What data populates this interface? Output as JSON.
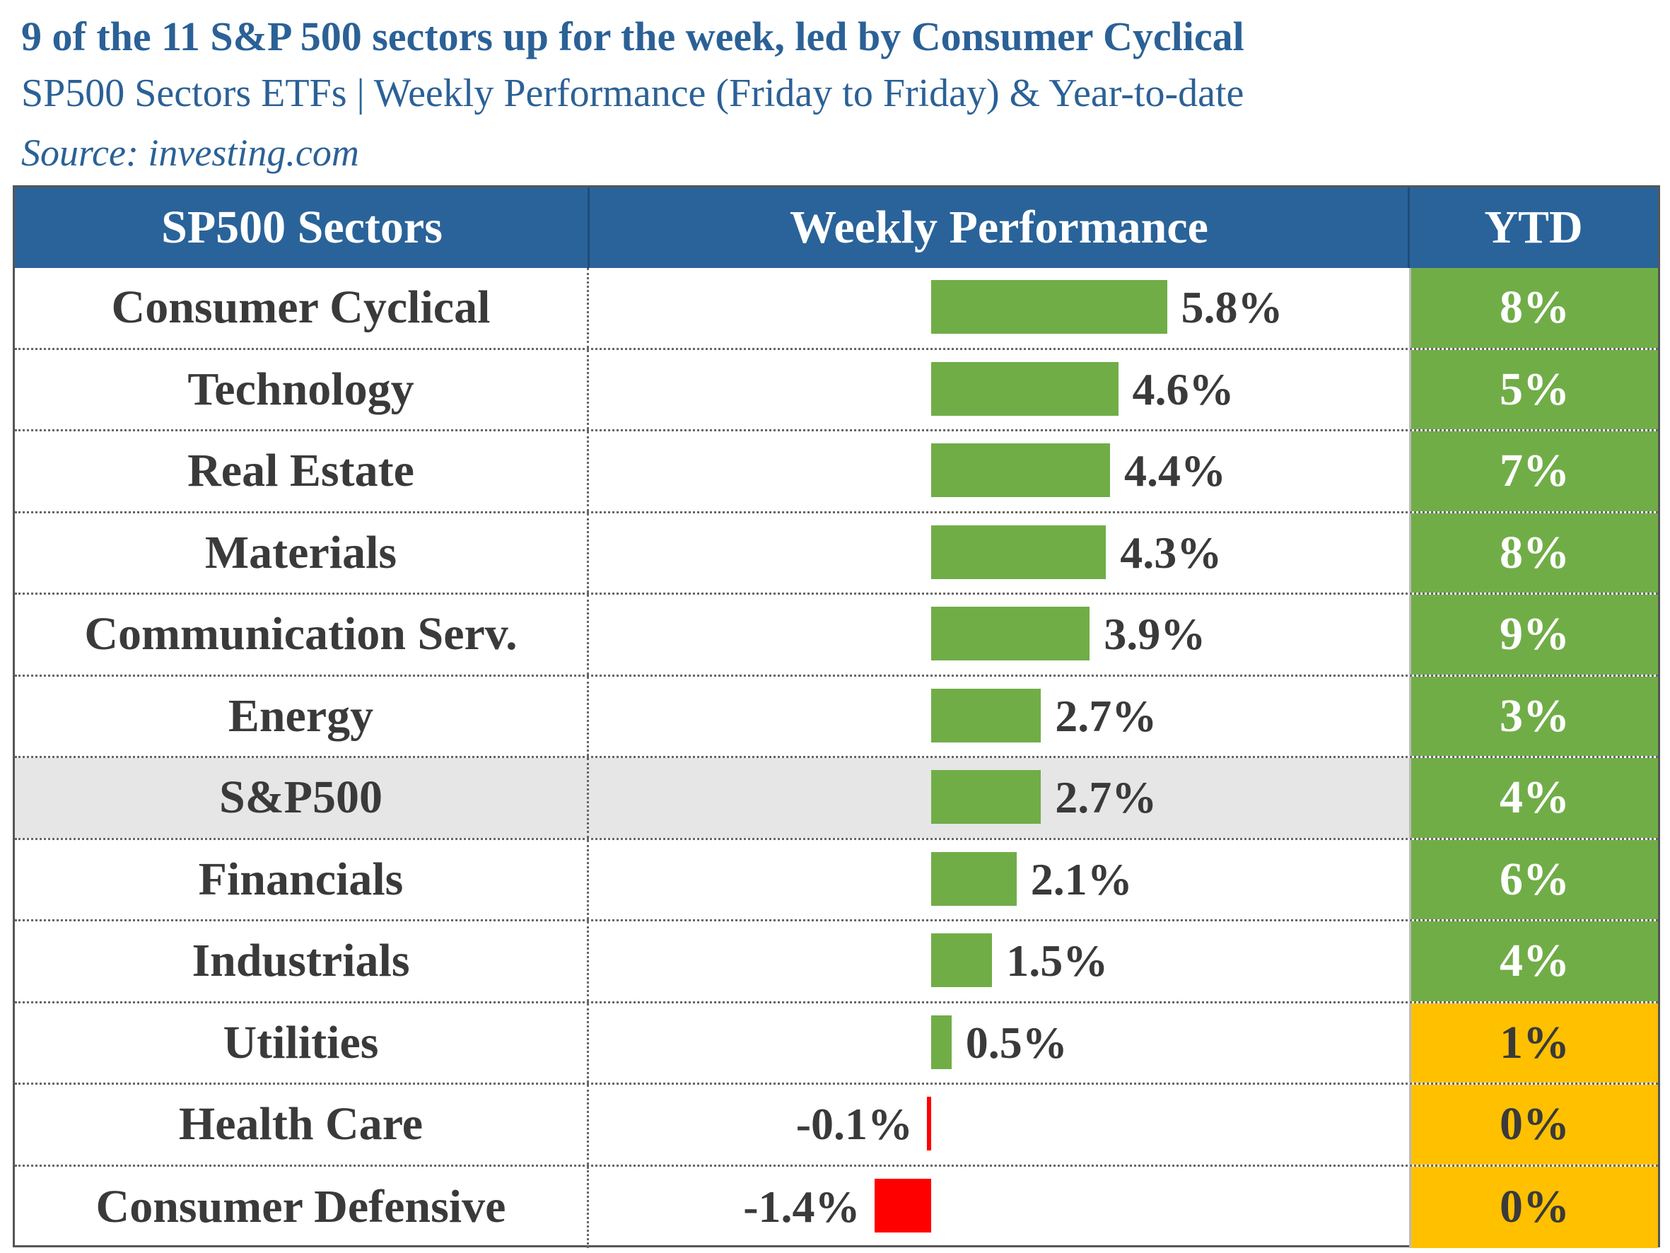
{
  "title": "9 of  the 11 S&P 500 sectors up for the week, led by Consumer Cyclical",
  "subtitle": "SP500 Sectors ETFs | Weekly Performance (Friday to Friday) & Year-to-date",
  "source": "Source: investing.com",
  "colors": {
    "header_bg": "#2a6399",
    "title": "#2b6196",
    "positive_bar": "#70ad47",
    "negative_bar": "#ff0000",
    "ytd_green": "#70ad47",
    "ytd_amber": "#ffc000",
    "highlight_row": "#e6e6e6"
  },
  "table": {
    "headers": [
      "SP500 Sectors",
      "Weekly Performance",
      "YTD"
    ]
  },
  "chart_data": {
    "type": "bar",
    "orientation": "horizontal",
    "categories": [
      "Consumer Cyclical",
      "Technology",
      "Real Estate",
      "Materials",
      "Communication Serv.",
      "Energy",
      "S&P500",
      "Financials",
      "Industrials",
      "Utilities",
      "Health Care",
      "Consumer Defensive"
    ],
    "values": [
      5.8,
      4.6,
      4.4,
      4.3,
      3.9,
      2.7,
      2.7,
      2.1,
      1.5,
      0.5,
      -0.1,
      -1.4
    ],
    "labels": [
      "5.8%",
      "4.6%",
      "4.4%",
      "4.3%",
      "3.9%",
      "2.7%",
      "2.7%",
      "2.1%",
      "1.5%",
      "0.5%",
      "-0.1%",
      "-1.4%"
    ],
    "ytd": [
      "8%",
      "5%",
      "7%",
      "8%",
      "9%",
      "3%",
      "4%",
      "6%",
      "4%",
      "1%",
      "0%",
      "0%"
    ],
    "ytd_status": [
      "green",
      "green",
      "green",
      "green",
      "green",
      "green",
      "green",
      "green",
      "green",
      "amber",
      "amber",
      "amber"
    ],
    "highlight": "S&P500"
  }
}
